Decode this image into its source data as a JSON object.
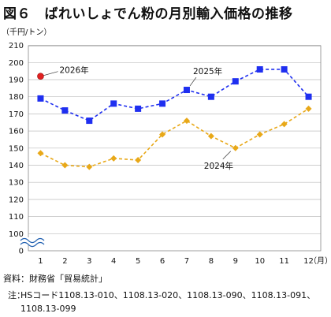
{
  "title": "図６　ばれいしょでん粉の月別輸入価格の推移",
  "unit": "（千円/トン）",
  "source": "資料：財務省「貿易統計」",
  "note_prefix": "注：",
  "note_lines": [
    "HSコード1108.13-010、1108.13-020、1108.13-090、1108.13-091、",
    "1108.13-099"
  ],
  "chart_data": {
    "type": "line",
    "categories": [
      "1",
      "2",
      "3",
      "4",
      "5",
      "6",
      "7",
      "8",
      "9",
      "10",
      "11",
      "12"
    ],
    "x_unit": "（月）",
    "ylim": [
      100,
      210
    ],
    "yticks": [
      0,
      100,
      110,
      120,
      130,
      140,
      150,
      160,
      170,
      180,
      190,
      200,
      210
    ],
    "axis_break": true,
    "grid": true,
    "series": [
      {
        "name": "2026年",
        "color": "#e02020",
        "marker": "circle",
        "values": [
          192,
          null,
          null,
          null,
          null,
          null,
          null,
          null,
          null,
          null,
          null,
          null
        ]
      },
      {
        "name": "2025年",
        "color": "#1f2ff0",
        "marker": "square",
        "values": [
          179,
          172,
          166,
          176,
          173,
          176,
          184,
          180,
          189,
          196,
          196,
          180
        ]
      },
      {
        "name": "2024年",
        "color": "#e8a818",
        "marker": "diamond",
        "values": [
          147,
          140,
          139,
          144,
          143,
          158,
          166,
          157,
          150,
          158,
          164,
          173
        ]
      }
    ]
  }
}
